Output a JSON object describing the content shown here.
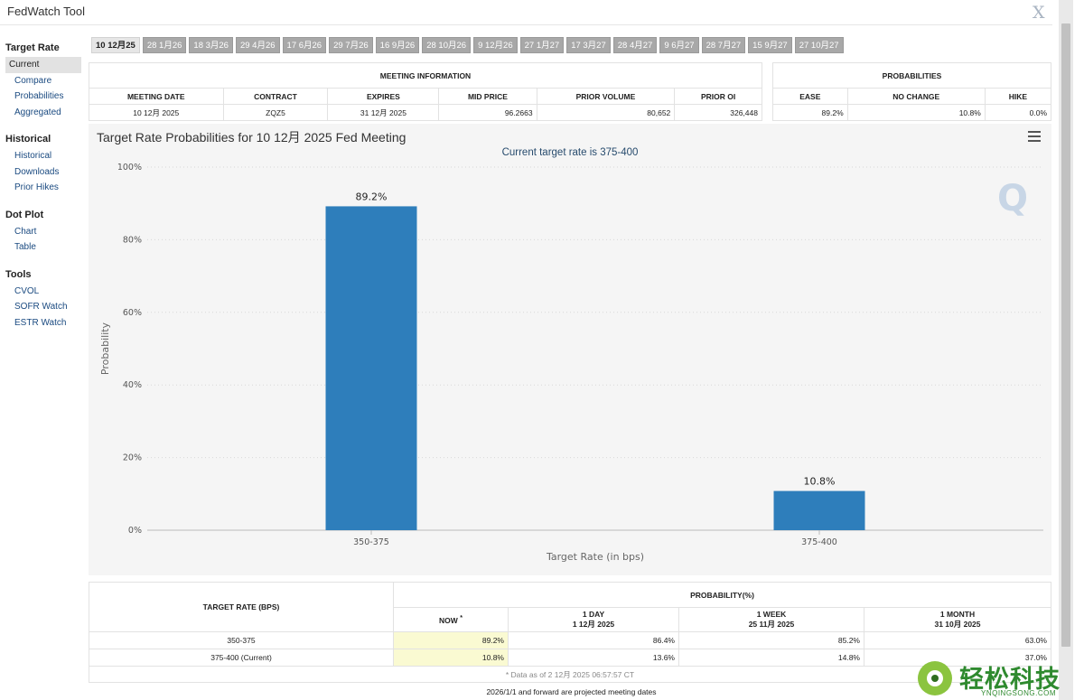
{
  "app": {
    "title": "FedWatch Tool",
    "close_glyph": "X"
  },
  "sidebar": {
    "sections": [
      {
        "heading": "Target Rate",
        "items": [
          "Current",
          "Compare",
          "Probabilities",
          "Aggregated"
        ]
      },
      {
        "heading": "Historical",
        "items": [
          "Historical",
          "Downloads",
          "Prior Hikes"
        ]
      },
      {
        "heading": "Dot Plot",
        "items": [
          "Chart",
          "Table"
        ]
      },
      {
        "heading": "Tools",
        "items": [
          "CVOL",
          "SOFR Watch",
          "ESTR Watch"
        ]
      }
    ]
  },
  "tabs": [
    "10 12月25",
    "28 1月26",
    "18 3月26",
    "29 4月26",
    "17 6月26",
    "29 7月26",
    "16 9月26",
    "28 10月26",
    "9 12月26",
    "27 1月27",
    "17 3月27",
    "28 4月27",
    "9 6月27",
    "28 7月27",
    "15 9月27",
    "27 10月27"
  ],
  "meeting_info": {
    "title": "MEETING INFORMATION",
    "headers": [
      "MEETING DATE",
      "CONTRACT",
      "EXPIRES",
      "MID PRICE",
      "PRIOR VOLUME",
      "PRIOR OI"
    ],
    "values": [
      "10 12月 2025",
      "ZQZ5",
      "31 12月 2025",
      "96.2663",
      "80,652",
      "326,448"
    ]
  },
  "probabilities": {
    "title": "PROBABILITIES",
    "headers": [
      "EASE",
      "NO CHANGE",
      "HIKE"
    ],
    "values": [
      "89.2%",
      "10.8%",
      "0.0%"
    ]
  },
  "chart_data": {
    "type": "bar",
    "title": "Target Rate Probabilities for 10 12月 2025 Fed Meeting",
    "subtitle": "Current target rate is 375-400",
    "categories": [
      "350-375",
      "375-400"
    ],
    "values": [
      89.2,
      10.8
    ],
    "data_labels": [
      "89.2%",
      "10.8%"
    ],
    "xlabel": "Target Rate (in bps)",
    "ylabel": "Probability",
    "ylim": [
      0,
      100
    ],
    "yticks": [
      0,
      20,
      40,
      60,
      80,
      100
    ],
    "ytick_labels": [
      "0%",
      "20%",
      "40%",
      "60%",
      "80%",
      "100%"
    ],
    "grid": true,
    "bar_color": "#2e7ebb"
  },
  "chart_watermark": "Q",
  "rate_table": {
    "col_target": "TARGET RATE (BPS)",
    "col_prob": "PROBABILITY(%)",
    "periods": [
      {
        "label": "NOW",
        "marker": "*",
        "date": ""
      },
      {
        "label": "1 DAY",
        "date": "1 12月 2025"
      },
      {
        "label": "1 WEEK",
        "date": "25 11月 2025"
      },
      {
        "label": "1 MONTH",
        "date": "31 10月 2025"
      }
    ],
    "rows": [
      {
        "rate": "350-375",
        "vals": [
          "89.2%",
          "86.4%",
          "85.2%",
          "63.0%"
        ]
      },
      {
        "rate": "375-400 (Current)",
        "vals": [
          "10.8%",
          "13.6%",
          "14.8%",
          "37.0%"
        ]
      }
    ],
    "footnote": "* Data as of 2 12月 2025 06:57:57 CT"
  },
  "bottom_note": "2026/1/1 and forward are projected meeting dates",
  "brand": {
    "name": "轻松科技",
    "url": "YNQINGSONG.COM"
  }
}
